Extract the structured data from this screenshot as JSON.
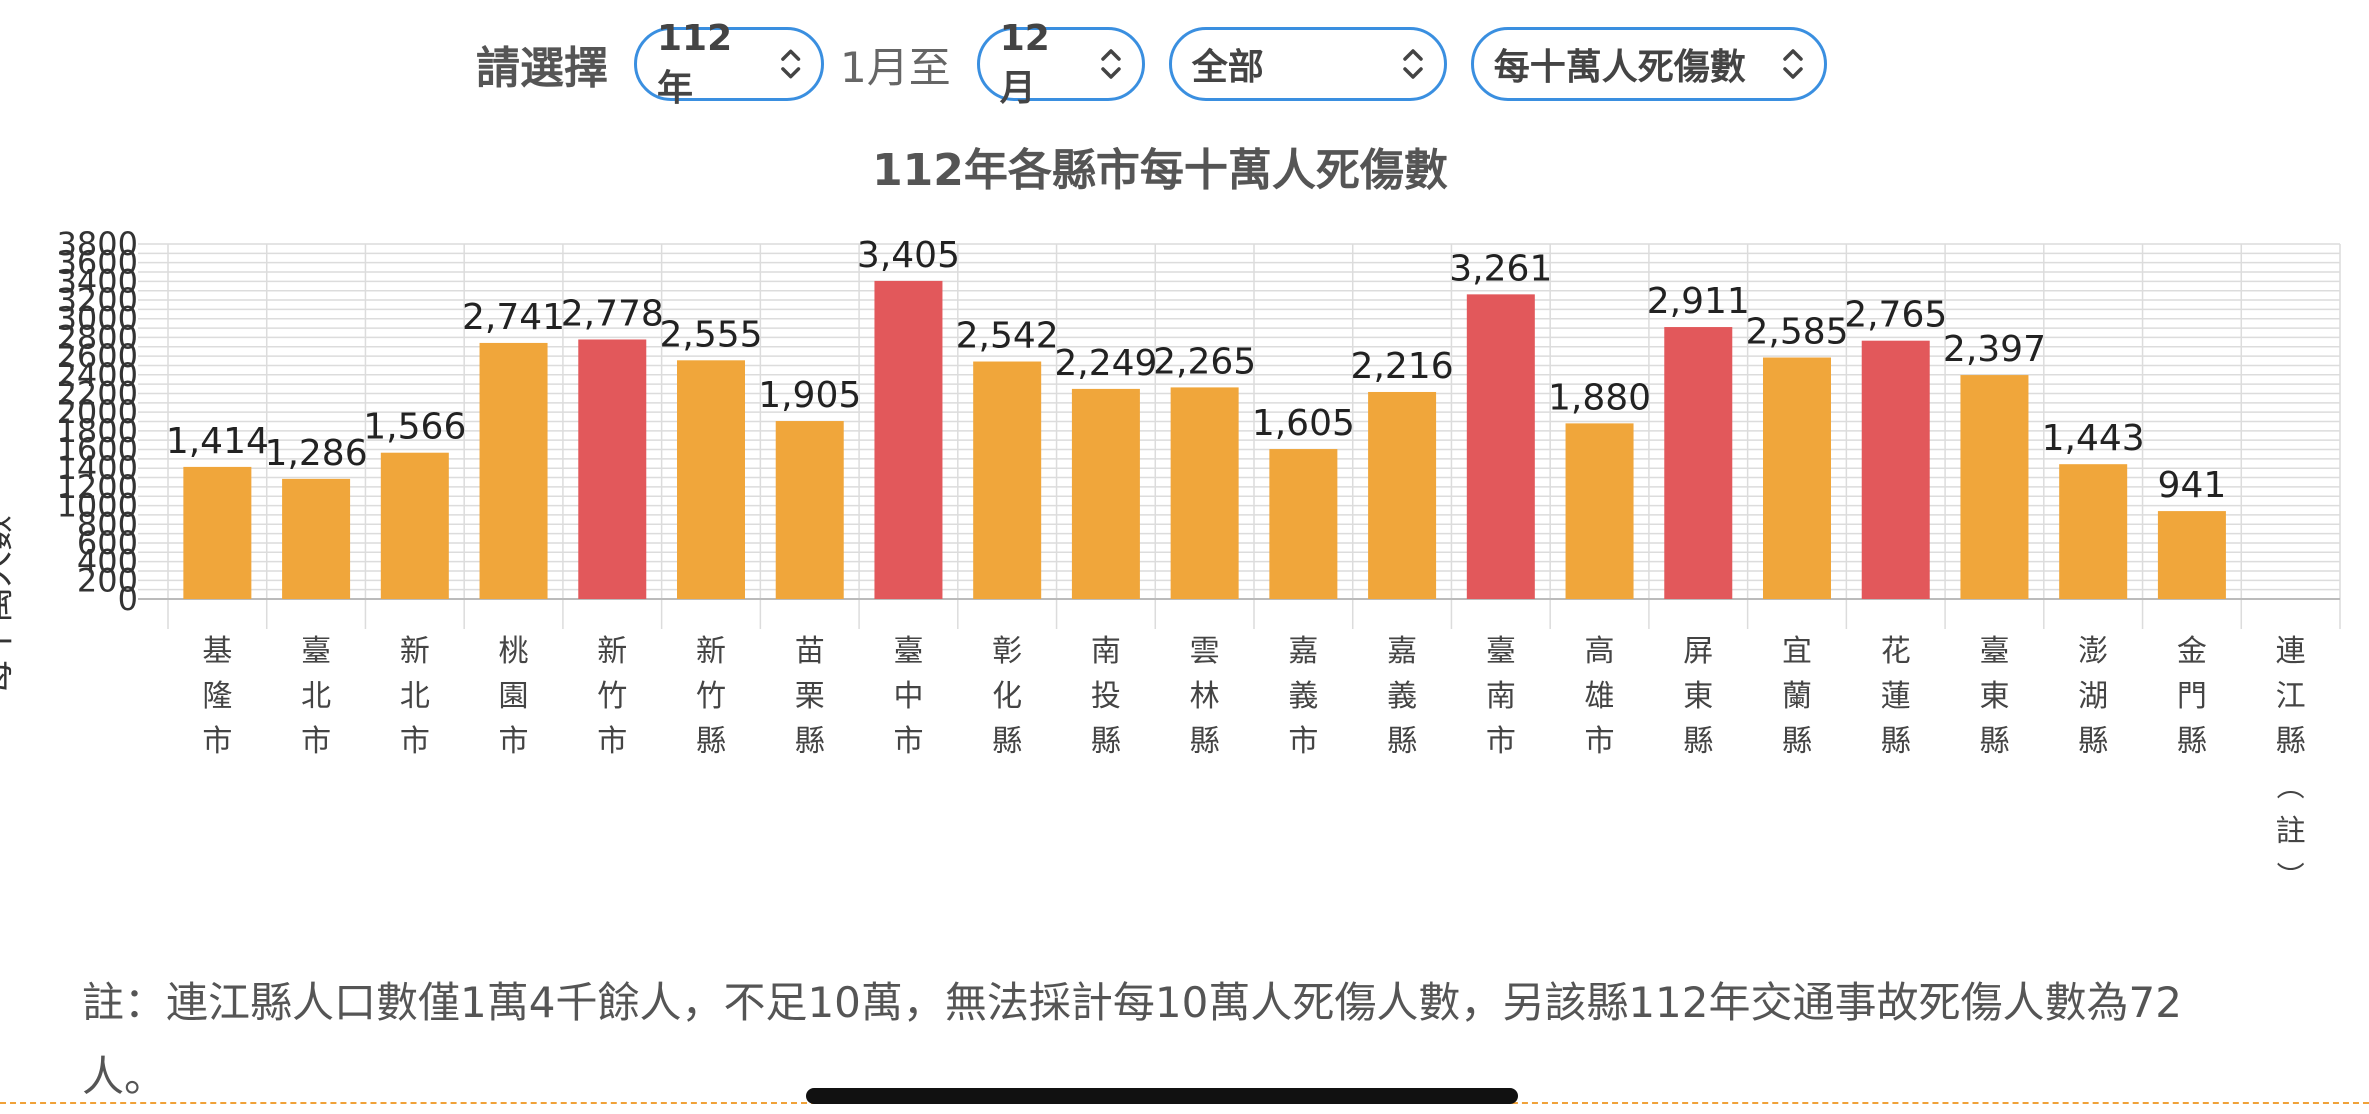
{
  "filters": {
    "label": "請選擇",
    "year": "112年",
    "from_month_text": "1月至",
    "to_month": "12月",
    "region": "全部",
    "metric": "每十萬人死傷數"
  },
  "chart_data": {
    "type": "bar",
    "title": "112年各縣市每十萬人死傷數",
    "ylabel": "每十萬人數",
    "xlabel": "",
    "ylim": [
      0,
      3800
    ],
    "yticks": [
      0,
      200,
      400,
      600,
      800,
      1000,
      1200,
      1400,
      1600,
      1800,
      2000,
      2200,
      2400,
      2600,
      2800,
      3000,
      3200,
      3400,
      3600,
      3800
    ],
    "grid": true,
    "categories": [
      "基隆市",
      "臺北市",
      "新北市",
      "桃園市",
      "新竹市",
      "新竹縣",
      "苗栗縣",
      "臺中市",
      "彰化縣",
      "南投縣",
      "雲林縣",
      "嘉義市",
      "嘉義縣",
      "臺南市",
      "高雄市",
      "屏東縣",
      "宜蘭縣",
      "花蓮縣",
      "臺東縣",
      "澎湖縣",
      "金門縣",
      "連江縣（註）"
    ],
    "values": [
      1414,
      1286,
      1566,
      2741,
      2778,
      2555,
      1905,
      3405,
      2542,
      2249,
      2265,
      1605,
      2216,
      3261,
      1880,
      2911,
      2585,
      2765,
      2397,
      1443,
      941,
      null
    ],
    "value_labels": [
      "1,414",
      "1,286",
      "1,566",
      "2,741",
      "2,778",
      "2,555",
      "1,905",
      "3,405",
      "2,542",
      "2,249",
      "2,265",
      "1,605",
      "2,216",
      "3,261",
      "1,880",
      "2,911",
      "2,585",
      "2,765",
      "2,397",
      "1,443",
      "941",
      ""
    ],
    "highlight": [
      false,
      false,
      false,
      false,
      true,
      false,
      false,
      true,
      false,
      false,
      false,
      false,
      false,
      true,
      false,
      true,
      false,
      true,
      false,
      false,
      false,
      false
    ],
    "colors": {
      "normal": "#f0a63b",
      "highlight": "#e2585b",
      "grid": "#dcdcdc",
      "axis": "#bbbbbb"
    }
  },
  "note": "註：連江縣人口數僅1萬4千餘人，不足10萬，無法採計每10萬人死傷人數，另該縣112年交通事故死傷人數為72人。",
  "icons": {
    "select_chevron": "chevron-up-down-icon"
  }
}
